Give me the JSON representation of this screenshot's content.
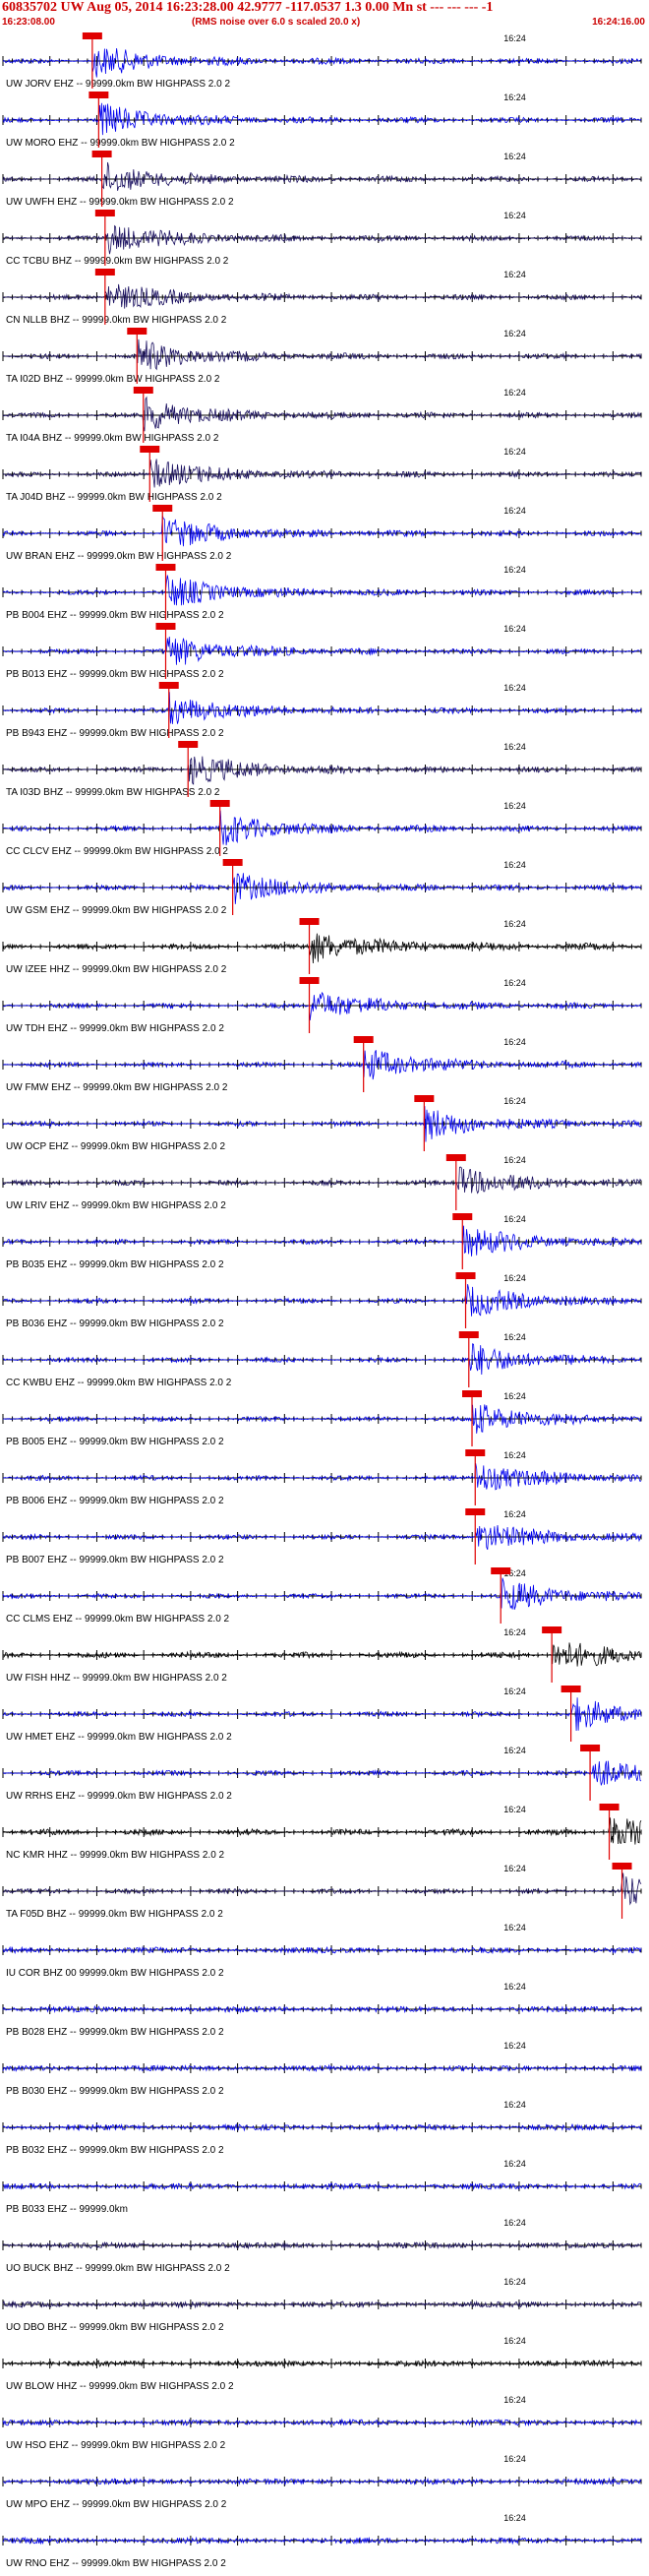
{
  "header": {
    "title": "60835702 UW Aug 05, 2014 16:23:28.00   42.9777 -117.0537  1.3 0.00 Mn st --- --- ---  -1",
    "start_time": "16:23:08.00",
    "note": "(RMS noise over 6.0 s scaled 20.0 x)",
    "end_time": "16:24:16.00"
  },
  "colors": {
    "header": "#cc0000",
    "grid": "#000000",
    "pick": "#e00000",
    "blue": "#0000ee",
    "navy": "#1a1060",
    "black": "#000000"
  },
  "chart_data": {
    "type": "line",
    "title": "60835702 UW Aug 05, 2014 16:23:28.00   42.9777 -117.0537  1.3 0.00 Mn st --- --- ---  -1",
    "x_start": "16:23:08.00",
    "x_end": "16:24:16.00",
    "time_marker_label": "16:24",
    "traces": [
      {
        "label": "UW JORV EHZ -- 99999.0km BW  HIGHPASS  2.0  2",
        "color": "blue",
        "pick": 0.14
      },
      {
        "label": "UW MORO EHZ -- 99999.0km BW  HIGHPASS  2.0  2",
        "color": "blue",
        "pick": 0.15
      },
      {
        "label": "UW UWFH EHZ -- 99999.0km BW  HIGHPASS  2.0  2",
        "color": "navy",
        "pick": 0.155
      },
      {
        "label": "CC TCBU BHZ -- 99999.0km BW  HIGHPASS  2.0  2",
        "color": "navy",
        "pick": 0.16
      },
      {
        "label": "CN NLLB BHZ -- 99999.0km BW  HIGHPASS  2.0  2",
        "color": "navy",
        "pick": 0.16
      },
      {
        "label": "TA I02D BHZ -- 99999.0km BW  HIGHPASS  2.0  2",
        "color": "navy",
        "pick": 0.21
      },
      {
        "label": "TA I04A BHZ -- 99999.0km BW  HIGHPASS  2.0  2",
        "color": "navy",
        "pick": 0.22
      },
      {
        "label": "TA J04D BHZ -- 99999.0km BW  HIGHPASS  2.0  2",
        "color": "navy",
        "pick": 0.23
      },
      {
        "label": "UW BRAN EHZ -- 99999.0km BW  HIGHPASS  2.0  2",
        "color": "blue",
        "pick": 0.25
      },
      {
        "label": "PB B004 EHZ -- 99999.0km BW  HIGHPASS  2.0  2",
        "color": "blue",
        "pick": 0.255
      },
      {
        "label": "PB B013 EHZ -- 99999.0km BW  HIGHPASS  2.0  2",
        "color": "blue",
        "pick": 0.255
      },
      {
        "label": "PB B943 EHZ -- 99999.0km BW  HIGHPASS  2.0  2",
        "color": "blue",
        "pick": 0.26
      },
      {
        "label": "TA I03D BHZ -- 99999.0km BW  HIGHPASS  2.0  2",
        "color": "navy",
        "pick": 0.29
      },
      {
        "label": "CC CLCV EHZ -- 99999.0km BW  HIGHPASS  2.0  2",
        "color": "blue",
        "pick": 0.34
      },
      {
        "label": "UW GSM EHZ -- 99999.0km BW  HIGHPASS  2.0  2",
        "color": "blue",
        "pick": 0.36
      },
      {
        "label": "UW IZEE HHZ -- 99999.0km BW  HIGHPASS  2.0  2",
        "color": "black",
        "pick": 0.48
      },
      {
        "label": "UW TDH EHZ -- 99999.0km BW  HIGHPASS  2.0  2",
        "color": "blue",
        "pick": 0.48
      },
      {
        "label": "UW FMW EHZ -- 99999.0km BW  HIGHPASS  2.0  2",
        "color": "blue",
        "pick": 0.565
      },
      {
        "label": "UW OCP EHZ -- 99999.0km BW  HIGHPASS  2.0  2",
        "color": "blue",
        "pick": 0.66
      },
      {
        "label": "UW LRIV EHZ -- 99999.0km BW  HIGHPASS  2.0  2",
        "color": "navy",
        "pick": 0.71
      },
      {
        "label": "PB B035 EHZ -- 99999.0km BW  HIGHPASS  2.0  2",
        "color": "blue",
        "pick": 0.72
      },
      {
        "label": "PB B036 EHZ -- 99999.0km BW  HIGHPASS  2.0  2",
        "color": "blue",
        "pick": 0.725
      },
      {
        "label": "CC KWBU EHZ -- 99999.0km BW  HIGHPASS  2.0  2",
        "color": "blue",
        "pick": 0.73
      },
      {
        "label": "PB B005 EHZ -- 99999.0km BW  HIGHPASS  2.0  2",
        "color": "blue",
        "pick": 0.735
      },
      {
        "label": "PB B006 EHZ -- 99999.0km BW  HIGHPASS  2.0  2",
        "color": "blue",
        "pick": 0.74
      },
      {
        "label": "PB B007 EHZ -- 99999.0km BW  HIGHPASS  2.0  2",
        "color": "blue",
        "pick": 0.74
      },
      {
        "label": "CC CLMS EHZ -- 99999.0km BW  HIGHPASS  2.0  2",
        "color": "blue",
        "pick": 0.78
      },
      {
        "label": "UW FISH HHZ -- 99999.0km BW  HIGHPASS  2.0  2",
        "color": "black",
        "pick": 0.86
      },
      {
        "label": "UW HMET EHZ -- 99999.0km BW  HIGHPASS  2.0  2",
        "color": "blue",
        "pick": 0.89
      },
      {
        "label": "UW RRHS EHZ -- 99999.0km BW  HIGHPASS  2.0  2",
        "color": "blue",
        "pick": 0.92
      },
      {
        "label": "NC KMR HHZ -- 99999.0km BW  HIGHPASS  2.0  2",
        "color": "black",
        "pick": 0.95
      },
      {
        "label": "TA F05D BHZ -- 99999.0km BW  HIGHPASS  2.0  2",
        "color": "navy",
        "pick": 0.97
      },
      {
        "label": "IU COR BHZ 00 99999.0km BW  HIGHPASS  2.0  2",
        "color": "blue",
        "pick": null
      },
      {
        "label": "PB B028 EHZ -- 99999.0km BW  HIGHPASS  2.0  2",
        "color": "blue",
        "pick": null
      },
      {
        "label": "PB B030 EHZ -- 99999.0km BW  HIGHPASS  2.0  2",
        "color": "blue",
        "pick": null
      },
      {
        "label": "PB B032 EHZ -- 99999.0km BW  HIGHPASS  2.0  2",
        "color": "blue",
        "pick": null
      },
      {
        "label": "PB B033 EHZ -- 99999.0km",
        "color": "blue",
        "pick": null
      },
      {
        "label": "UO BUCK BHZ -- 99999.0km BW  HIGHPASS  2.0  2",
        "color": "navy",
        "pick": null
      },
      {
        "label": "UO DBO BHZ -- 99999.0km BW  HIGHPASS  2.0  2",
        "color": "navy",
        "pick": null
      },
      {
        "label": "UW BLOW HHZ -- 99999.0km BW  HIGHPASS  2.0  2",
        "color": "black",
        "pick": null
      },
      {
        "label": "UW HSO EHZ -- 99999.0km BW  HIGHPASS  2.0  2",
        "color": "blue",
        "pick": null
      },
      {
        "label": "UW MPO EHZ -- 99999.0km BW  HIGHPASS  2.0  2",
        "color": "blue",
        "pick": null
      },
      {
        "label": "UW RNO EHZ -- 99999.0km BW  HIGHPASS  2.0  2",
        "color": "blue",
        "pick": null
      }
    ]
  }
}
